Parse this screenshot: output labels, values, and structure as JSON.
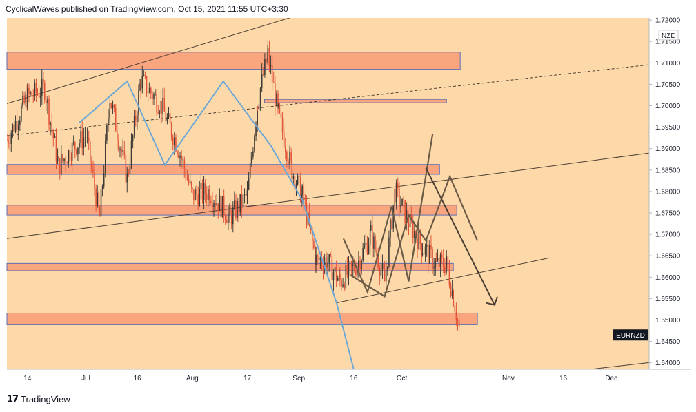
{
  "header": {
    "text": "CyclicalWaves published on TradingView.com, Oct 15, 2021 11:55 UTC+3:30"
  },
  "footer": {
    "logo_icon": "tradingview-logo-icon",
    "brand": "TradingView"
  },
  "colors": {
    "background": "#fdd9a9",
    "zone_fill": "#f9a57e",
    "zone_stroke": "#5a6fb8",
    "candle_up": "#3e3a35",
    "candle_down": "#e0543a",
    "blue_line": "#6ea7d6",
    "pattern_line": "#6b5a45",
    "channel_line": "#4a3e33",
    "label_bg": "#131722",
    "label_text": "#ffffff"
  },
  "chart_data": {
    "type": "candlestick",
    "symbol_label": "EURNZD",
    "currency_label": "NZD",
    "y_ticks": [
      "1.64000",
      "1.64500",
      "1.65000",
      "1.65500",
      "1.66000",
      "1.66500",
      "1.67000",
      "1.67500",
      "1.68000",
      "1.68500",
      "1.69000",
      "1.69500",
      "1.70000",
      "1.70500",
      "1.71000",
      "1.71500",
      "1.72000"
    ],
    "x_ticks": [
      "14",
      "Jul",
      "16",
      "Aug",
      "17",
      "Sep",
      "16",
      "Oct",
      "Nov",
      "16",
      "Dec"
    ],
    "x_tick_days": [
      14,
      31,
      46,
      62,
      78,
      93,
      109,
      123,
      154,
      170,
      184
    ],
    "ylim": [
      1.6385,
      1.7205
    ],
    "xlim": [
      8,
      195
    ],
    "zones": [
      {
        "x0": 8,
        "x1": 140,
        "y0": 1.7085,
        "y1": 1.7125
      },
      {
        "x0": 83,
        "x1": 136,
        "y0": 1.7007,
        "y1": 1.7015
      },
      {
        "x0": 8,
        "x1": 134,
        "y0": 1.684,
        "y1": 1.6863
      },
      {
        "x0": 8,
        "x1": 139,
        "y0": 1.6745,
        "y1": 1.6768
      },
      {
        "x0": 8,
        "x1": 138,
        "y0": 1.6615,
        "y1": 1.6632
      },
      {
        "x0": 8,
        "x1": 145,
        "y0": 1.649,
        "y1": 1.6516
      }
    ],
    "blue_path": [
      [
        29,
        1.696
      ],
      [
        43,
        1.7057
      ],
      [
        54,
        1.6862
      ],
      [
        71,
        1.7057
      ],
      [
        85,
        1.6905
      ],
      [
        94,
        1.678
      ],
      [
        104,
        1.654
      ],
      [
        109,
        1.6385
      ]
    ],
    "zigzag_path": [
      [
        106,
        1.669
      ],
      [
        113,
        1.6565
      ],
      [
        120,
        1.6765
      ],
      [
        125,
        1.659
      ],
      [
        132,
        1.6935
      ]
    ],
    "second_pattern_path": [
      [
        108,
        1.6605
      ],
      [
        118,
        1.6555
      ],
      [
        125,
        1.6745
      ],
      [
        130,
        1.6685
      ],
      [
        137,
        1.6835
      ],
      [
        145,
        1.6685
      ]
    ],
    "arrow_path": [
      [
        130,
        1.6855
      ],
      [
        150,
        1.6535
      ]
    ],
    "trend_lines": [
      {
        "from": [
          8,
          1.7005
        ],
        "to": [
          117,
          1.727
        ],
        "dash": false
      },
      {
        "from": [
          8,
          1.693
        ],
        "to": [
          200,
          1.71
        ],
        "dash": true
      },
      {
        "from": [
          8,
          1.669
        ],
        "to": [
          200,
          1.6895
        ],
        "dash": false
      },
      {
        "from": [
          104,
          1.654
        ],
        "to": [
          166,
          1.6645
        ],
        "dash": false
      },
      {
        "from": [
          178,
          1.6385
        ],
        "to": [
          200,
          1.6405
        ],
        "dash": false
      }
    ],
    "candles_anchors": [
      [
        8,
        1.692
      ],
      [
        14,
        1.702
      ],
      [
        19,
        1.704
      ],
      [
        23,
        1.686
      ],
      [
        27,
        1.69
      ],
      [
        31,
        1.693
      ],
      [
        35,
        1.674
      ],
      [
        38,
        1.702
      ],
      [
        43,
        1.683
      ],
      [
        47,
        1.706
      ],
      [
        53,
        1.7
      ],
      [
        58,
        1.69
      ],
      [
        62,
        1.679
      ],
      [
        67,
        1.68
      ],
      [
        73,
        1.674
      ],
      [
        78,
        1.679
      ],
      [
        81,
        1.701
      ],
      [
        84,
        1.712
      ],
      [
        87,
        1.698
      ],
      [
        91,
        1.685
      ],
      [
        94,
        1.679
      ],
      [
        98,
        1.664
      ],
      [
        101,
        1.664
      ],
      [
        105,
        1.659
      ],
      [
        110,
        1.663
      ],
      [
        114,
        1.67
      ],
      [
        118,
        1.659
      ],
      [
        121,
        1.68
      ],
      [
        125,
        1.673
      ],
      [
        129,
        1.667
      ],
      [
        133,
        1.663
      ],
      [
        136,
        1.663
      ],
      [
        138,
        1.6555
      ],
      [
        140,
        1.6465
      ]
    ]
  }
}
